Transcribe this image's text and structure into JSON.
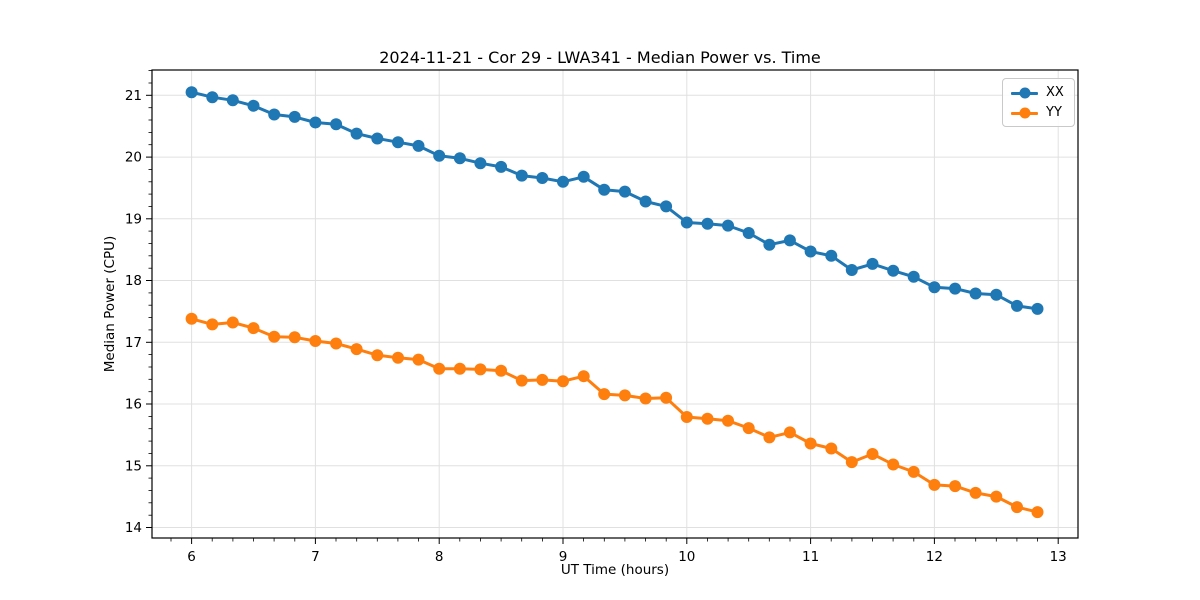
{
  "figure": {
    "background": "#ffffff"
  },
  "chart_data": {
    "type": "line",
    "title": "2024-11-21 - Cor 29 - LWA341 - Median Power vs. Time",
    "xlabel": "UT Time (hours)",
    "ylabel": "Median Power (CPU)",
    "x": [
      6.0,
      6.167,
      6.333,
      6.5,
      6.667,
      6.833,
      7.0,
      7.167,
      7.333,
      7.5,
      7.667,
      7.833,
      8.0,
      8.167,
      8.333,
      8.5,
      8.667,
      8.833,
      9.0,
      9.167,
      9.333,
      9.5,
      9.667,
      9.833,
      10.0,
      10.167,
      10.333,
      10.5,
      10.667,
      10.833,
      11.0,
      11.167,
      11.333,
      11.5,
      11.667,
      11.833,
      12.0,
      12.167,
      12.333,
      12.5,
      12.667,
      12.833
    ],
    "series": [
      {
        "name": "XX",
        "color": "#1f77b4",
        "values": [
          21.05,
          20.97,
          20.92,
          20.83,
          20.69,
          20.65,
          20.56,
          20.53,
          20.38,
          20.3,
          20.24,
          20.18,
          20.02,
          19.98,
          19.9,
          19.84,
          19.7,
          19.66,
          19.6,
          19.68,
          19.47,
          19.44,
          19.28,
          19.2,
          18.94,
          18.92,
          18.89,
          18.77,
          18.58,
          18.65,
          18.47,
          18.4,
          18.17,
          18.27,
          18.16,
          18.06,
          17.89,
          17.87,
          17.79,
          17.77,
          17.59,
          17.54
        ]
      },
      {
        "name": "YY",
        "color": "#ff7f0e",
        "values": [
          17.38,
          17.29,
          17.32,
          17.23,
          17.09,
          17.08,
          17.02,
          16.98,
          16.89,
          16.79,
          16.75,
          16.72,
          16.57,
          16.57,
          16.56,
          16.54,
          16.38,
          16.39,
          16.37,
          16.45,
          16.16,
          16.14,
          16.09,
          16.1,
          15.79,
          15.76,
          15.73,
          15.61,
          15.46,
          15.54,
          15.36,
          15.28,
          15.06,
          15.19,
          15.02,
          14.9,
          14.69,
          14.67,
          14.56,
          14.5,
          14.33,
          14.25
        ]
      }
    ],
    "axes": {
      "xlim": [
        5.68,
        13.16
      ],
      "ylim": [
        13.83,
        21.41
      ],
      "xticks": [
        6,
        7,
        8,
        9,
        10,
        11,
        12,
        13
      ],
      "yticks": [
        14,
        15,
        16,
        17,
        18,
        19,
        20,
        21
      ],
      "x_minor_divisions": 6,
      "y_minor_divisions": 5,
      "grid": true,
      "grid_color": "#e0e0e0",
      "axis_color": "#000000",
      "legend_position": "upper right"
    }
  }
}
